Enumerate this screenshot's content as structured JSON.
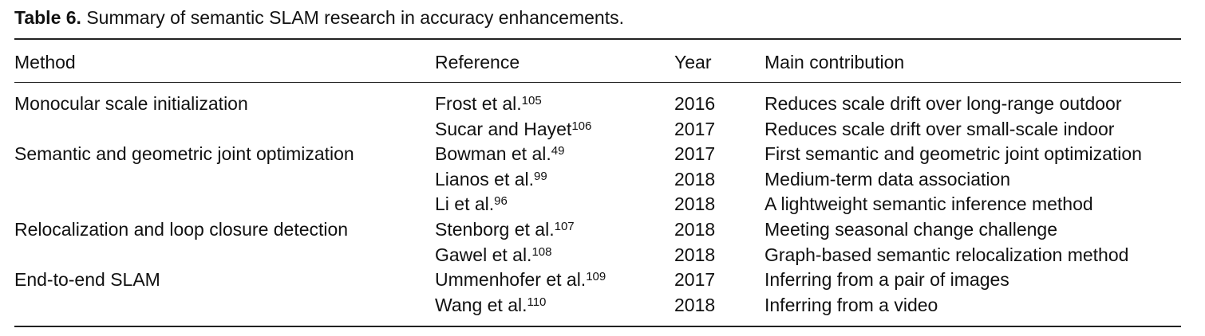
{
  "caption": {
    "label": "Table 6.",
    "text": "Summary of semantic SLAM research in accuracy enhancements."
  },
  "table": {
    "headers": [
      "Method",
      "Reference",
      "Year",
      "Main contribution"
    ],
    "groups": [
      {
        "method": "Monocular scale initialization",
        "entries": [
          {
            "reference": "Frost et al.",
            "sup": "105",
            "year": 2016,
            "contribution": "Reduces scale drift over long-range outdoor"
          },
          {
            "reference": "Sucar and Hayet",
            "sup": "106",
            "year": 2017,
            "contribution": "Reduces scale drift over small-scale indoor"
          }
        ]
      },
      {
        "method": "Semantic and geometric joint optimization",
        "entries": [
          {
            "reference": "Bowman et al.",
            "sup": "49",
            "year": 2017,
            "contribution": "First semantic and geometric joint optimization"
          },
          {
            "reference": "Lianos et al.",
            "sup": "99",
            "year": 2018,
            "contribution": "Medium-term data association"
          },
          {
            "reference": "Li et al.",
            "sup": "96",
            "year": 2018,
            "contribution": "A lightweight semantic inference method"
          }
        ]
      },
      {
        "method": "Relocalization and loop closure detection",
        "entries": [
          {
            "reference": "Stenborg et al.",
            "sup": "107",
            "year": 2018,
            "contribution": "Meeting seasonal change challenge"
          },
          {
            "reference": "Gawel et al.",
            "sup": "108",
            "year": 2018,
            "contribution": "Graph-based semantic relocalization method"
          }
        ]
      },
      {
        "method": "End-to-end SLAM",
        "entries": [
          {
            "reference": "Ummenhofer et al.",
            "sup": "109",
            "year": 2017,
            "contribution": "Inferring from a pair of images"
          },
          {
            "reference": "Wang et al.",
            "sup": "110",
            "year": 2018,
            "contribution": "Inferring from a video"
          }
        ]
      }
    ]
  }
}
